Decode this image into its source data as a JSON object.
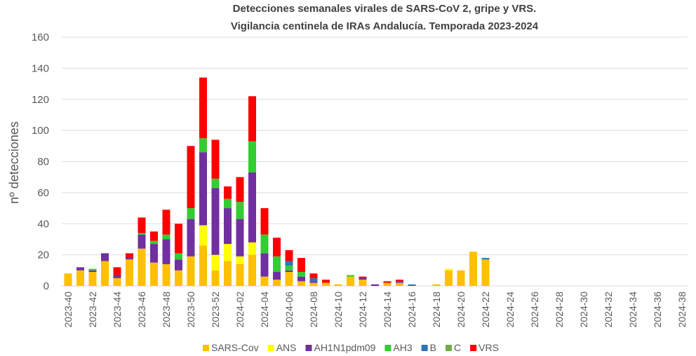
{
  "chart_data": {
    "type": "stacked-bar",
    "title": "Detecciones semanales virales de SARS-CoV 2, gripe y VRS.",
    "subtitle": "Vigilancia centinela de IRAs Andalucía. Temporada 2023-2024",
    "y_label": "nº detecciones",
    "categories": [
      "2023-40",
      null,
      "2023-42",
      null,
      "2023-44",
      null,
      "2023-46",
      null,
      "2023-48",
      null,
      "2023-50",
      null,
      "2023-52",
      null,
      "2024-02",
      null,
      "2024-04",
      null,
      "2024-06",
      null,
      "2024-08",
      null,
      "2024-10",
      null,
      "2024-12",
      null,
      "2024-14",
      null,
      "2024-16",
      null,
      "2024-18",
      null,
      "2024-20",
      null,
      "2024-22",
      null,
      "2024-24",
      null,
      "2024-26",
      null,
      "2024-28",
      null,
      "2024-30",
      null,
      "2024-32",
      null,
      "2024-34",
      null,
      "2024-36",
      null,
      "2024-38"
    ],
    "series": [
      {
        "name": "SARS-Cov",
        "color": "#ffc000",
        "values": [
          8,
          10,
          9,
          16,
          5,
          17,
          24,
          15,
          14,
          10,
          19,
          26,
          10,
          16,
          14,
          20,
          6,
          4,
          9,
          3,
          2,
          2,
          1,
          6,
          4,
          0,
          2,
          2,
          0,
          0,
          1,
          10,
          10,
          22,
          17,
          0,
          0,
          0,
          0,
          0,
          0,
          0,
          0,
          0,
          0,
          0,
          0,
          0,
          0,
          0,
          0
        ]
      },
      {
        "name": "ANS",
        "color": "#ffff00",
        "values": [
          0,
          0,
          0,
          0,
          0,
          0,
          0,
          0,
          0,
          0,
          0,
          13,
          10,
          11,
          5,
          8,
          0,
          0,
          0,
          0,
          0,
          0,
          0,
          0,
          0,
          0,
          0,
          0,
          0,
          0,
          0,
          1,
          0,
          0,
          0,
          0,
          0,
          0,
          0,
          0,
          0,
          0,
          0,
          0,
          0,
          0,
          0,
          0,
          0,
          0,
          0
        ]
      },
      {
        "name": "AH1N1pdm09",
        "color": "#7030a0",
        "values": [
          0,
          2,
          1,
          5,
          2,
          1,
          9,
          12,
          16,
          7,
          24,
          47,
          43,
          23,
          24,
          45,
          15,
          5,
          1,
          3,
          1,
          0,
          0,
          0,
          1,
          1,
          0,
          1,
          0,
          0,
          0,
          0,
          0,
          0,
          0,
          0,
          0,
          0,
          0,
          0,
          0,
          0,
          0,
          0,
          0,
          0,
          0,
          0,
          0,
          0,
          0
        ]
      },
      {
        "name": "AH3",
        "color": "#33cc33",
        "values": [
          0,
          0,
          1,
          0,
          0,
          0,
          1,
          2,
          3,
          4,
          7,
          9,
          6,
          6,
          11,
          20,
          12,
          10,
          3,
          3,
          0,
          0,
          0,
          1,
          0,
          0,
          0,
          0,
          0,
          0,
          0,
          0,
          0,
          0,
          0,
          0,
          0,
          0,
          0,
          0,
          0,
          0,
          0,
          0,
          0,
          0,
          0,
          0,
          0,
          0,
          0
        ]
      },
      {
        "name": "B",
        "color": "#2e75b6",
        "values": [
          0,
          0,
          0,
          0,
          0,
          0,
          0,
          0,
          0,
          0,
          0,
          0,
          0,
          0,
          0,
          0,
          0,
          0,
          3,
          0,
          2,
          0,
          0,
          0,
          0,
          0,
          0,
          0,
          1,
          0,
          0,
          0,
          0,
          0,
          1,
          0,
          0,
          0,
          0,
          0,
          0,
          0,
          0,
          0,
          0,
          0,
          0,
          0,
          0,
          0,
          0
        ]
      },
      {
        "name": "C",
        "color": "#70ad47",
        "values": [
          0,
          0,
          0,
          0,
          0,
          0,
          0,
          0,
          0,
          0,
          0,
          0,
          0,
          0,
          0,
          0,
          0,
          0,
          0,
          0,
          0,
          0,
          0,
          0,
          0,
          0,
          0,
          0,
          0,
          0,
          0,
          0,
          0,
          0,
          0,
          0,
          0,
          0,
          0,
          0,
          0,
          0,
          0,
          0,
          0,
          0,
          0,
          0,
          0,
          0,
          0
        ]
      },
      {
        "name": "VRS",
        "color": "#ff0000",
        "values": [
          0,
          0,
          0,
          0,
          5,
          3,
          10,
          6,
          16,
          19,
          40,
          39,
          25,
          8,
          16,
          29,
          17,
          12,
          7,
          9,
          3,
          2,
          0,
          0,
          1,
          0,
          1,
          1,
          0,
          0,
          0,
          0,
          0,
          0,
          0,
          0,
          0,
          0,
          0,
          0,
          0,
          0,
          0,
          0,
          0,
          0,
          0,
          0,
          0,
          0,
          0
        ]
      }
    ],
    "ylim": [
      0,
      160
    ],
    "yticks": [
      0,
      20,
      40,
      60,
      80,
      100,
      120,
      140,
      160
    ],
    "grid": true
  }
}
